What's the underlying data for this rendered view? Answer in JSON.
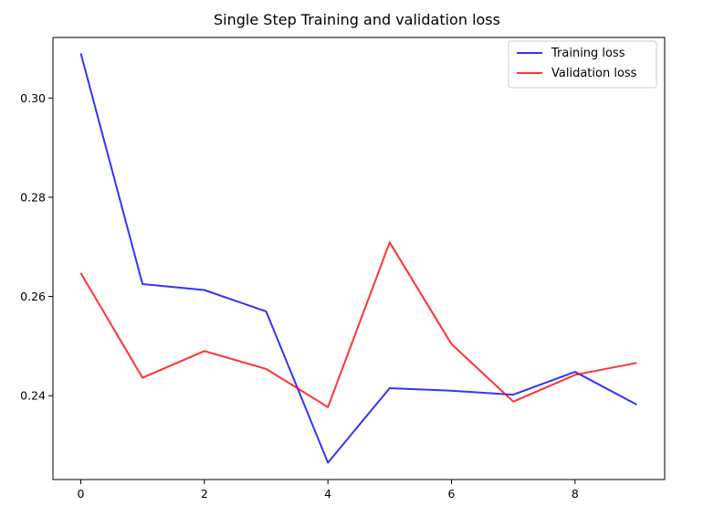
{
  "chart_data": {
    "type": "line",
    "title": "Single Step Training and validation loss",
    "xlabel": "",
    "ylabel": "",
    "x": [
      0,
      1,
      2,
      3,
      4,
      5,
      6,
      7,
      8,
      9
    ],
    "series": [
      {
        "name": "Training loss",
        "color": "#0000ff",
        "values": [
          0.309,
          0.2625,
          0.2613,
          0.257,
          0.2265,
          0.2415,
          0.241,
          0.2402,
          0.2448,
          0.2382
        ]
      },
      {
        "name": "Validation loss",
        "color": "#ff0000",
        "values": [
          0.2647,
          0.2436,
          0.249,
          0.2454,
          0.2377,
          0.2709,
          0.2504,
          0.2388,
          0.2442,
          0.2466
        ]
      }
    ],
    "xticks": [
      "0",
      "2",
      "4",
      "6",
      "8"
    ],
    "yticks": [
      "0.24",
      "0.26",
      "0.28",
      "0.30"
    ],
    "xlim": [
      -0.45,
      9.45
    ],
    "ylim": [
      0.2231,
      0.3122
    ],
    "grid": false,
    "legend_position": "top-right"
  }
}
